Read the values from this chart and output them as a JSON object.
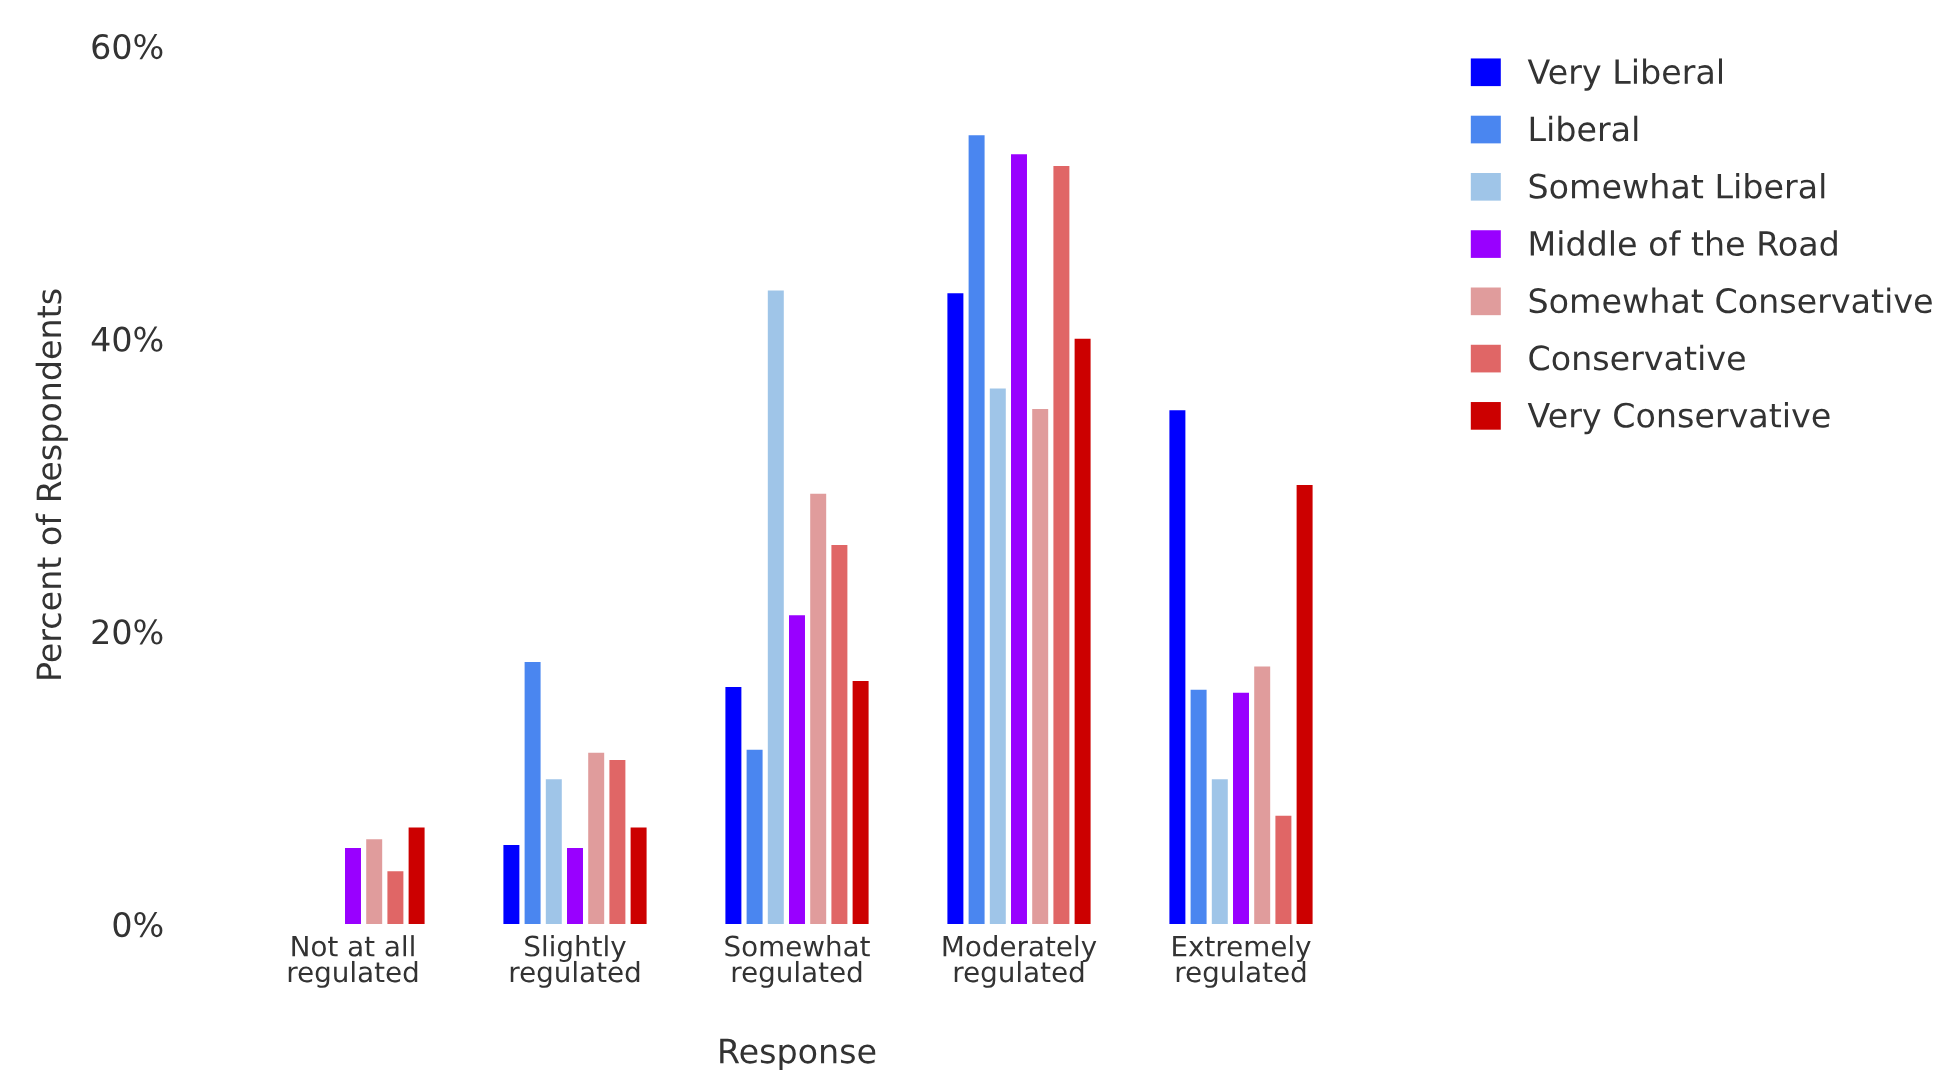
{
  "chart_data": {
    "type": "bar",
    "xlabel": "Response",
    "ylabel": "Percent of Respondents",
    "categories": [
      "Not at all\nregulated",
      "Slightly\nregulated",
      "Somewhat\nregulated",
      "Moderately\nregulated",
      "Extremely\nregulated"
    ],
    "series": [
      {
        "name": "Very Liberal",
        "color": "#0000ff",
        "values": [
          null,
          5.4,
          16.2,
          43.1,
          35.1
        ]
      },
      {
        "name": "Liberal",
        "color": "#4a86f0",
        "values": [
          null,
          17.9,
          11.9,
          53.9,
          16.0
        ]
      },
      {
        "name": "Somewhat Liberal",
        "color": "#9fc5e8",
        "values": [
          null,
          9.9,
          43.3,
          36.6,
          9.9
        ]
      },
      {
        "name": "Middle of the Road",
        "color": "#9900ff",
        "values": [
          5.2,
          5.2,
          21.1,
          52.6,
          15.8
        ]
      },
      {
        "name": "Somewhat Conservative",
        "color": "#e09c9c",
        "values": [
          5.8,
          11.7,
          29.4,
          35.2,
          17.6
        ]
      },
      {
        "name": "Conservative",
        "color": "#e06666",
        "values": [
          3.6,
          11.2,
          25.9,
          51.8,
          7.4
        ]
      },
      {
        "name": "Very Conservative",
        "color": "#cc0000",
        "values": [
          6.6,
          6.6,
          16.6,
          40.0,
          30.0
        ]
      }
    ],
    "ylim": [
      0,
      60
    ],
    "yticks": [
      {
        "value": 0,
        "label": "0%"
      },
      {
        "value": 20,
        "label": "20%"
      },
      {
        "value": 40,
        "label": "40%"
      },
      {
        "value": 60,
        "label": "60%"
      }
    ],
    "grid": false,
    "legend": "top right"
  }
}
